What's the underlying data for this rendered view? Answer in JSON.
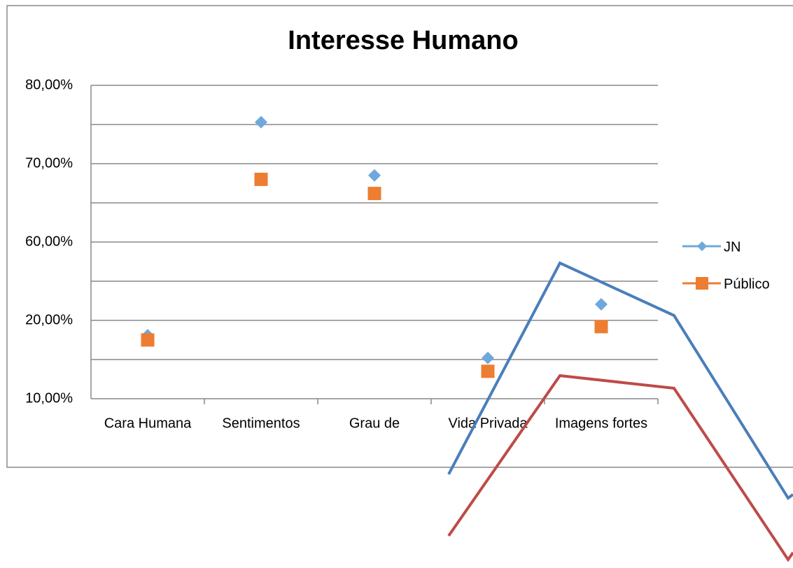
{
  "chart_data": {
    "type": "scatter",
    "title": "Interesse  Humano",
    "categories": [
      "Cara Humana",
      "Sentimentos",
      "Grau de",
      "Vida Privada",
      "Imagens fortes"
    ],
    "series": [
      {
        "name": "JN",
        "color": "#6fa8dc",
        "marker": "diamond",
        "values": [
          18.1,
          75.3,
          68.5,
          15.2,
          28.2
        ]
      },
      {
        "name": "Público",
        "color": "#ed7d31",
        "marker": "square",
        "values": [
          17.5,
          68,
          66.2,
          13.5,
          19.2
        ]
      }
    ],
    "yticks": [
      {
        "value": 80,
        "label": "80,00%"
      },
      {
        "value": 70,
        "label": "70,00%"
      },
      {
        "value": 60,
        "label": "60,00%"
      },
      {
        "value": 20,
        "label": "20,00%"
      },
      {
        "value": 10,
        "label": "10,00%"
      }
    ],
    "grid": true,
    "legend": "right"
  }
}
